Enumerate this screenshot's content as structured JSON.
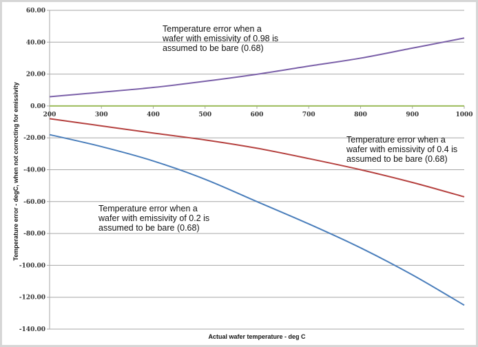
{
  "chart_data": {
    "type": "line",
    "xlabel": "Actual wafer temperature - deg C",
    "ylabel": "Temperature error - degC, when not correcting for emissivity",
    "xlim": [
      200,
      1000
    ],
    "ylim": [
      -140,
      60
    ],
    "x_ticks": [
      "200",
      "300",
      "400",
      "500",
      "600",
      "700",
      "800",
      "900",
      "1000"
    ],
    "y_ticks": [
      "60.00",
      "40.00",
      "20.00",
      "0.00",
      "-20.00",
      "-40.00",
      "-60.00",
      "-80.00",
      "-100.00",
      "-120.00",
      "-140.00"
    ],
    "grid": "horizontal",
    "x": [
      200,
      300,
      400,
      500,
      600,
      700,
      800,
      900,
      1000
    ],
    "series": [
      {
        "color": "#7a5fa8",
        "values": [
          5.8,
          8.6,
          11.6,
          15.5,
          19.9,
          25.0,
          30.0,
          36.3,
          42.6
        ]
      },
      {
        "color": "#9bbb59",
        "values": [
          0,
          0,
          0,
          0,
          0,
          0,
          0,
          0,
          0
        ]
      },
      {
        "color": "#b5413f",
        "values": [
          -8.0,
          -12.5,
          -17.0,
          -21.3,
          -26.5,
          -33.0,
          -40.0,
          -48.0,
          -57.0
        ]
      },
      {
        "color": "#4a7ebb",
        "values": [
          -18.0,
          -25.5,
          -34.5,
          -46.0,
          -60.0,
          -74.0,
          -89.0,
          -106.0,
          -125.0
        ]
      }
    ],
    "annotations": [
      {
        "lines": [
          "Temperature error when a",
          "wafer with  emissivity of 0.98 is",
          "assumed to be bare (0.68)"
        ]
      },
      {
        "lines": [
          "Temperature error when a",
          "wafer with  emissivity of 0.4 is",
          "assumed to be bare (0.68)"
        ]
      },
      {
        "lines": [
          "Temperature error when a",
          "wafer with  emissivity of 0.2 is",
          "assumed to be bare (0.68)"
        ]
      }
    ]
  }
}
